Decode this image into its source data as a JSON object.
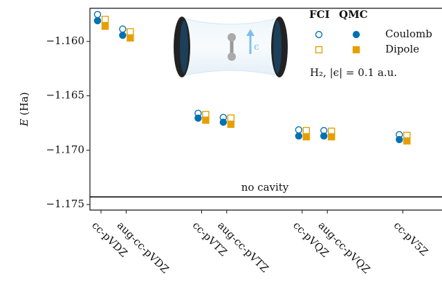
{
  "chart_data": {
    "type": "scatter",
    "ylabel_symbol": "E",
    "ylabel_unit": "(Ha)",
    "x": [
      2,
      2.25,
      3,
      3.25,
      4,
      4.25,
      5
    ],
    "xlim": [
      1.89,
      5.39
    ],
    "xticks": [
      {
        "value": 2,
        "label": "cc-pVDZ"
      },
      {
        "value": 2.25,
        "label": "aug-cc-pVDZ"
      },
      {
        "value": 3,
        "label": "cc-pVTZ"
      },
      {
        "value": 3.25,
        "label": "aug-cc-pVTZ"
      },
      {
        "value": 4,
        "label": "cc-pVQZ"
      },
      {
        "value": 4.25,
        "label": "aug-cc-pVQZ"
      },
      {
        "value": 5,
        "label": "cc-pV5Z"
      }
    ],
    "ylim": [
      -1.17551,
      -1.15695
    ],
    "yticks": [
      {
        "value": -1.16,
        "label": "−1.160"
      },
      {
        "value": -1.165,
        "label": "−1.165"
      },
      {
        "value": -1.17,
        "label": "−1.170"
      },
      {
        "value": -1.175,
        "label": "−1.175"
      }
    ],
    "legend_columns": [
      "FCI",
      "QMC"
    ],
    "series": [
      {
        "name": "Coulomb",
        "color": "#0072b2",
        "marker": "circle",
        "fci": [
          -1.15752,
          -1.15886,
          -1.16661,
          -1.16699,
          -1.16813,
          -1.1682,
          -1.16858
        ],
        "qmc": [
          -1.15809,
          -1.15943,
          -1.16705,
          -1.16743,
          -1.1687,
          -1.1687,
          -1.16902
        ]
      },
      {
        "name": "Dipole",
        "color": "#e69f00",
        "marker": "square",
        "fci": [
          -1.15797,
          -1.15911,
          -1.16673,
          -1.16705,
          -1.1682,
          -1.16826,
          -1.16864
        ],
        "qmc": [
          -1.1586,
          -1.15968,
          -1.16724,
          -1.16762,
          -1.16877,
          -1.16877,
          -1.16915
        ]
      }
    ],
    "reference": {
      "label": "no cavity",
      "value": -1.1743
    },
    "annotation": "H₂, |ϵ| = 0.1 a.u.",
    "inset_label": "ϵ"
  }
}
